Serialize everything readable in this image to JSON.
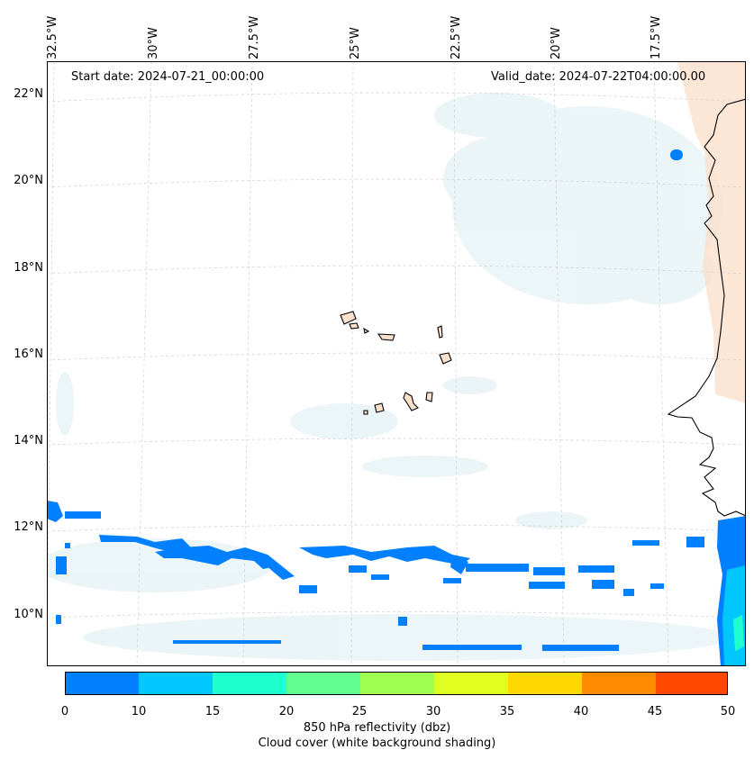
{
  "map": {
    "start_label": "Start date: 2024-07-21_00:00:00",
    "valid_label": "Valid_date: 2024-07-22T04:00:00.00",
    "lon_labels": [
      "32.5°W",
      "30°W",
      "27.5°W",
      "25°W",
      "22.5°W",
      "20°W",
      "17.5°W"
    ],
    "lat_labels": [
      "22°N",
      "20°N",
      "18°N",
      "16°N",
      "14°N",
      "12°N",
      "10°N"
    ]
  },
  "colorbar": {
    "ticks": [
      "0",
      "10",
      "15",
      "20",
      "25",
      "30",
      "35",
      "40",
      "45",
      "50"
    ],
    "colors": [
      "#0080ff",
      "#00c8ff",
      "#20ffd0",
      "#60ff90",
      "#a0ff50",
      "#e0ff20",
      "#ffd800",
      "#ff8c00",
      "#ff4800"
    ],
    "title_line1": "850 hPa reflectivity (dbz)",
    "title_line2": "Cloud cover (white background shading)"
  }
}
